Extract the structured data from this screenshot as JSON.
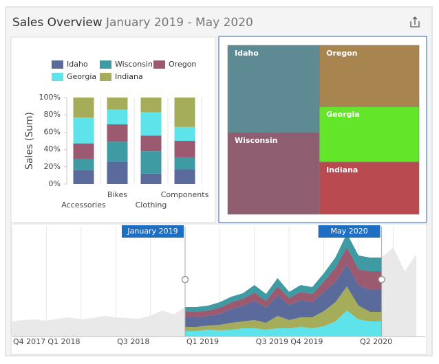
{
  "header": {
    "title": "Sales Overview",
    "subtitle": "January 2019 - May 2020"
  },
  "chart_data": [
    {
      "type": "bar",
      "stacked": true,
      "ylabel": "Sales (Sum)",
      "categories": [
        "Accessories",
        "Bikes",
        "Clothing",
        "Components"
      ],
      "ylim": [
        0,
        100
      ],
      "yticks": [
        {
          "value": 0,
          "label": "0%"
        },
        {
          "value": 20,
          "label": "20%"
        },
        {
          "value": 40,
          "label": "40%"
        },
        {
          "value": 60,
          "label": "60%"
        },
        {
          "value": 80,
          "label": "80%"
        },
        {
          "value": 100,
          "label": "100%"
        }
      ],
      "legend": "top",
      "series": [
        {
          "name": "Idaho",
          "color": "#5a6a9b",
          "values": [
            16,
            26,
            12,
            17
          ]
        },
        {
          "name": "Wisconsin",
          "color": "#3e9aa3",
          "values": [
            13,
            23,
            26,
            14
          ]
        },
        {
          "name": "Oregon",
          "color": "#9b5a70",
          "values": [
            18,
            20,
            18,
            19
          ]
        },
        {
          "name": "Georgia",
          "color": "#5ee3ea",
          "values": [
            30,
            17,
            27,
            16
          ]
        },
        {
          "name": "Indiana",
          "color": "#a6ad5a",
          "values": [
            23,
            14,
            17,
            34
          ]
        }
      ]
    },
    {
      "type": "treemap",
      "labels": [
        "Idaho",
        "Wisconsin",
        "Oregon",
        "Georgia",
        "Indiana"
      ],
      "values": [
        16.9,
        15.8,
        12.9,
        11.7,
        11.0
      ],
      "colors": [
        "#5e8a94",
        "#8f5e71",
        "#a8844f",
        "#63e52a",
        "#b84a50"
      ]
    },
    {
      "type": "area",
      "stacked": true,
      "x": [
        "2017-10",
        "2017-11",
        "2017-12",
        "2018-01",
        "2018-02",
        "2018-03",
        "2018-04",
        "2018-05",
        "2018-06",
        "2018-07",
        "2018-08",
        "2018-09",
        "2018-10",
        "2018-11",
        "2018-12",
        "2019-01",
        "2019-02",
        "2019-03",
        "2019-04",
        "2019-05",
        "2019-06",
        "2019-07",
        "2019-08",
        "2019-09",
        "2019-10",
        "2019-11",
        "2019-12",
        "2020-01",
        "2020-02",
        "2020-03",
        "2020-04",
        "2020-05",
        "2020-06",
        "2020-07",
        "2020-08",
        "2020-09"
      ],
      "xticks": [
        {
          "value": "2017-10",
          "label": "Q4 2017"
        },
        {
          "value": "2018-01",
          "label": "Q1 2018"
        },
        {
          "value": "2018-04",
          "label": null
        },
        {
          "value": "2018-07",
          "label": "Q3 2018"
        },
        {
          "value": "2018-10",
          "label": null
        },
        {
          "value": "2019-01",
          "label": "Q1 2019"
        },
        {
          "value": "2019-04",
          "label": null
        },
        {
          "value": "2019-07",
          "label": "Q3 2019"
        },
        {
          "value": "2019-10",
          "label": "Q4 2019"
        },
        {
          "value": "2020-01",
          "label": null
        },
        {
          "value": "2020-04",
          "label": "Q2 2020"
        },
        {
          "value": "2020-07",
          "label": null
        }
      ],
      "ylim": [
        0,
        160
      ],
      "background": {
        "color": "#e9e9e9",
        "values": [
          22,
          24,
          25,
          23,
          26,
          28,
          25,
          27,
          30,
          28,
          27,
          26,
          30,
          38,
          32,
          43,
          43,
          45,
          50,
          58,
          63,
          75,
          62,
          85,
          65,
          75,
          72,
          92,
          115,
          150,
          118,
          115,
          115,
          130,
          95,
          120
        ]
      },
      "selection": {
        "start": "2019-01",
        "end": "2020-06",
        "start_label": "January 2019",
        "end_label": "May 2020"
      },
      "series": [
        {
          "color": "#5ee3ea",
          "values": [
            null,
            null,
            null,
            null,
            null,
            null,
            null,
            null,
            null,
            null,
            null,
            null,
            null,
            null,
            null,
            8,
            8,
            10,
            9,
            10,
            12,
            12,
            10,
            12,
            12,
            14,
            12,
            15,
            22,
            38,
            25,
            22,
            22,
            null,
            null,
            null
          ]
        },
        {
          "color": "#a6ad5a",
          "values": [
            null,
            null,
            null,
            null,
            null,
            null,
            null,
            null,
            null,
            null,
            null,
            null,
            null,
            null,
            null,
            6,
            6,
            6,
            8,
            10,
            10,
            12,
            10,
            18,
            12,
            14,
            16,
            22,
            28,
            35,
            20,
            14,
            14,
            null,
            null,
            null
          ]
        },
        {
          "color": "#5a6a9b",
          "values": [
            null,
            null,
            null,
            null,
            null,
            null,
            null,
            null,
            null,
            null,
            null,
            null,
            null,
            null,
            null,
            14,
            14,
            14,
            16,
            20,
            23,
            28,
            22,
            30,
            22,
            25,
            22,
            28,
            30,
            32,
            30,
            32,
            32,
            null,
            null,
            null
          ]
        },
        {
          "color": "#9b5a70",
          "values": [
            null,
            null,
            null,
            null,
            null,
            null,
            null,
            null,
            null,
            null,
            null,
            null,
            null,
            null,
            null,
            8,
            8,
            8,
            9,
            10,
            10,
            12,
            10,
            13,
            10,
            12,
            12,
            15,
            20,
            25,
            23,
            27,
            27,
            null,
            null,
            null
          ]
        },
        {
          "color": "#3e9aa3",
          "values": [
            null,
            null,
            null,
            null,
            null,
            null,
            null,
            null,
            null,
            null,
            null,
            null,
            null,
            null,
            null,
            7,
            7,
            7,
            8,
            8,
            8,
            11,
            10,
            12,
            9,
            10,
            10,
            12,
            15,
            20,
            20,
            20,
            20,
            null,
            null,
            null
          ]
        }
      ]
    }
  ]
}
